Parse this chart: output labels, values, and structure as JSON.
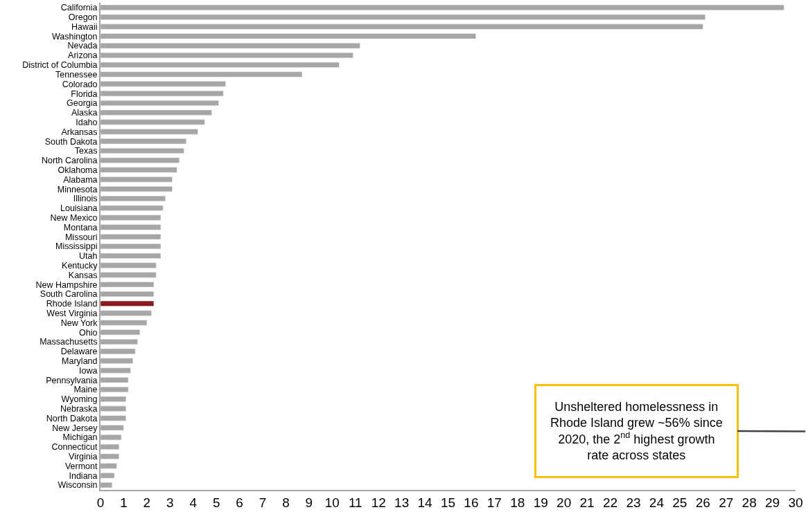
{
  "chart_data": {
    "type": "bar",
    "orientation": "horizontal",
    "categories": [
      "California",
      "Oregon",
      "Hawaii",
      "Washington",
      "Nevada",
      "Arizona",
      "District of Columbia",
      "Tennessee",
      "Colorado",
      "Florida",
      "Georgia",
      "Alaska",
      "Idaho",
      "Arkansas",
      "South Dakota",
      "Texas",
      "North Carolina",
      "Oklahoma",
      "Alabama",
      "Minnesota",
      "Illinois",
      "Louisiana",
      "New Mexico",
      "Montana",
      "Missouri",
      "Mississippi",
      "Utah",
      "Kentucky",
      "Kansas",
      "New Hampshire",
      "South Carolina",
      "Rhode Island",
      "West Virginia",
      "New York",
      "Ohio",
      "Massachusetts",
      "Delaware",
      "Maryland",
      "Iowa",
      "Pennsylvania",
      "Maine",
      "Wyoming",
      "Nebraska",
      "North Dakota",
      "New Jersey",
      "Michigan",
      "Connecticut",
      "Virginia",
      "Vermont",
      "Indiana",
      "Wisconsin"
    ],
    "values": [
      29.5,
      26.1,
      26.0,
      16.2,
      11.2,
      10.9,
      10.3,
      8.7,
      5.4,
      5.3,
      5.1,
      4.8,
      4.5,
      4.2,
      3.7,
      3.6,
      3.4,
      3.3,
      3.1,
      3.1,
      2.8,
      2.7,
      2.6,
      2.6,
      2.6,
      2.6,
      2.6,
      2.4,
      2.4,
      2.3,
      2.3,
      2.3,
      2.2,
      2.0,
      1.7,
      1.6,
      1.5,
      1.4,
      1.3,
      1.2,
      1.2,
      1.1,
      1.1,
      1.1,
      1.0,
      0.9,
      0.8,
      0.8,
      0.7,
      0.6,
      0.5
    ],
    "colors": [
      "#a6a6a6",
      "#a6a6a6",
      "#a6a6a6",
      "#a6a6a6",
      "#a6a6a6",
      "#a6a6a6",
      "#a6a6a6",
      "#a6a6a6",
      "#a6a6a6",
      "#a6a6a6",
      "#a6a6a6",
      "#a6a6a6",
      "#a6a6a6",
      "#a6a6a6",
      "#a6a6a6",
      "#a6a6a6",
      "#a6a6a6",
      "#a6a6a6",
      "#a6a6a6",
      "#a6a6a6",
      "#a6a6a6",
      "#a6a6a6",
      "#a6a6a6",
      "#a6a6a6",
      "#a6a6a6",
      "#a6a6a6",
      "#a6a6a6",
      "#a6a6a6",
      "#a6a6a6",
      "#a6a6a6",
      "#a6a6a6",
      "#8b1a1e",
      "#a6a6a6",
      "#a6a6a6",
      "#a6a6a6",
      "#a6a6a6",
      "#a6a6a6",
      "#a6a6a6",
      "#a6a6a6",
      "#a6a6a6",
      "#a6a6a6",
      "#a6a6a6",
      "#a6a6a6",
      "#a6a6a6",
      "#a6a6a6",
      "#a6a6a6",
      "#a6a6a6",
      "#a6a6a6",
      "#a6a6a6",
      "#a6a6a6",
      "#a6a6a6"
    ],
    "xlim": [
      0,
      30
    ],
    "xticks": [
      0,
      1,
      2,
      3,
      4,
      5,
      6,
      7,
      8,
      9,
      10,
      11,
      12,
      13,
      14,
      15,
      16,
      17,
      18,
      19,
      20,
      21,
      22,
      23,
      24,
      25,
      26,
      27,
      28,
      29,
      30
    ],
    "legend": false,
    "annotations": [
      "Unsheltered homelessness in Rhode Island grew ~56% since 2020, the 2$^{nd}$ highest growth rate across states"
    ]
  }
}
